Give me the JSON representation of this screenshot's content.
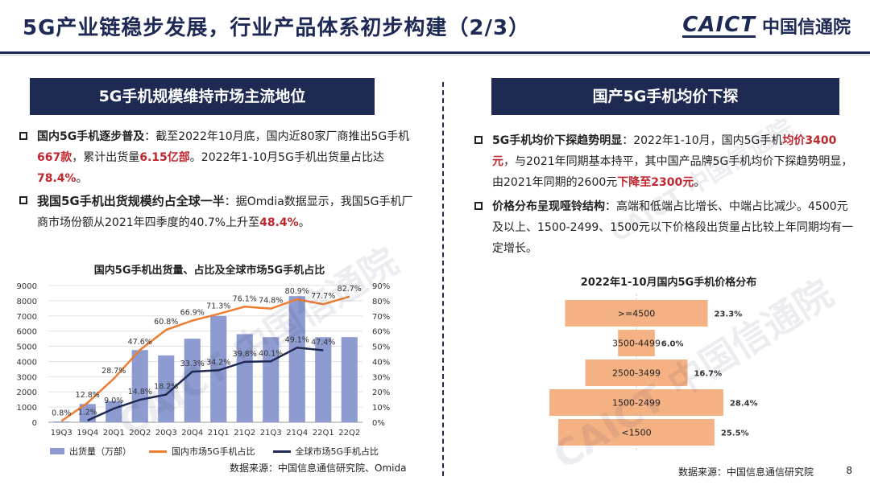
{
  "header": {
    "title": "5G产业链稳步发展，行业产品体系初步构建（2/3）",
    "logo_mark": "CAICT",
    "logo_cn": "中国信通院"
  },
  "left": {
    "banner": "5G手机规模维持市场主流地位",
    "b1": {
      "lead": "国内5G手机逐步普及",
      "t1": "：截至2022年10月底，国内近80家厂商推出5G手机",
      "h1": "667款",
      "t2": "，累计出货量",
      "h2": "6.15亿部",
      "t3": "。2022年1-10月5G手机出货量占比达",
      "h3": "78.4%",
      "t4": "。"
    },
    "b2": {
      "lead": "我国5G手机出货规模约占全球一半",
      "t1": "：据Omdia数据显示，我国5G手机厂商市场份额从2021年四季度的40.7%上升至",
      "h1": "48.4%",
      "t2": "。"
    },
    "chart_title": "国内5G手机出货量、占比及全球市场5G手机占比",
    "source": "数据来源：中国信息通信研究院、Omida"
  },
  "right": {
    "banner": "国产5G手机均价下探",
    "b1": {
      "lead": "5G手机均价下探趋势明显",
      "t1": "：2022年1-10月，国内5G手机",
      "h1": "均价3400元",
      "t2": "，与2021年同期基本持平，其中国产品牌5G手机均价下探趋势明显，由2021年同期的2600元",
      "h2": "下降至2300元",
      "t3": "。"
    },
    "b2": {
      "lead": "价格分布呈现哑铃结构",
      "t1": "：高端和低端占比增长、中端占比减少。4500元及以上、1500-2499、1500元以下价格段出货量占比较上年同期均有一定增长。"
    },
    "chart_title": "2022年1-10月国内5G手机价格分布",
    "source": "数据来源：中国信息通信研究院"
  },
  "page_number": "8",
  "watermark": "CAICT 中国信通院",
  "colors": {
    "navy": "#1f2a52",
    "red": "#c0262d",
    "bar": "#8d9bd0",
    "orange": "#ed7d31",
    "funnel": "#f4b183"
  },
  "chart_data": [
    {
      "type": "bar",
      "title": "国内5G手机出货量、占比及全球市场5G手机占比",
      "categories": [
        "19Q3",
        "19Q4",
        "20Q1",
        "20Q2",
        "20Q3",
        "20Q4",
        "21Q1",
        "21Q2",
        "21Q3",
        "21Q4",
        "22Q1",
        "22Q2"
      ],
      "ylim": [
        0,
        9000
      ],
      "yticks": [
        "0",
        "1000",
        "2000",
        "3000",
        "4000",
        "5000",
        "6000",
        "7000",
        "8000",
        "9000"
      ],
      "y2lim": [
        0,
        90
      ],
      "y2ticks": [
        "0%",
        "10%",
        "20%",
        "30%",
        "40%",
        "50%",
        "60%",
        "70%",
        "80%",
        "90%"
      ],
      "series": [
        {
          "name": "出货量（万部）",
          "kind": "bar",
          "values": [
            50,
            1200,
            1400,
            4750,
            4400,
            5500,
            7000,
            5800,
            5600,
            8300,
            5600,
            5600
          ]
        },
        {
          "name": "国内市场5G手机占比",
          "kind": "line",
          "values": [
            0.8,
            12.8,
            28.7,
            47.6,
            60.8,
            66.9,
            71.3,
            76.1,
            74.8,
            80.9,
            77.7,
            82.7
          ],
          "labels": [
            "0.8%",
            "12.8%",
            "28.7%",
            "47.6%",
            "60.8%",
            "66.9%",
            "71.3%",
            "76.1%",
            "74.8%",
            "80.9%",
            "77.7%",
            "82.7%"
          ]
        },
        {
          "name": "全球市场5G手机占比",
          "kind": "line",
          "values": [
            null,
            1.2,
            9.0,
            14.8,
            18.2,
            33.3,
            34.2,
            39.8,
            40.1,
            49.1,
            47.4,
            null
          ],
          "labels": [
            "",
            "1.2%",
            "9.0%",
            "14.8%",
            "18.2%",
            "33.3%",
            "34.2%",
            "39.8%",
            "40.1%",
            "49.1%",
            "47.4%",
            ""
          ]
        }
      ]
    },
    {
      "type": "bar",
      "title": "2022年1-10月国内5G手机价格分布",
      "categories": [
        ">=4500",
        "3500-4499",
        "2500-3499",
        "1500-2499",
        "<1500"
      ],
      "values": [
        23.3,
        6.0,
        16.7,
        28.4,
        25.5
      ],
      "labels": [
        "23.3%",
        "6.0%",
        "16.7%",
        "28.4%",
        "25.5%"
      ]
    }
  ]
}
